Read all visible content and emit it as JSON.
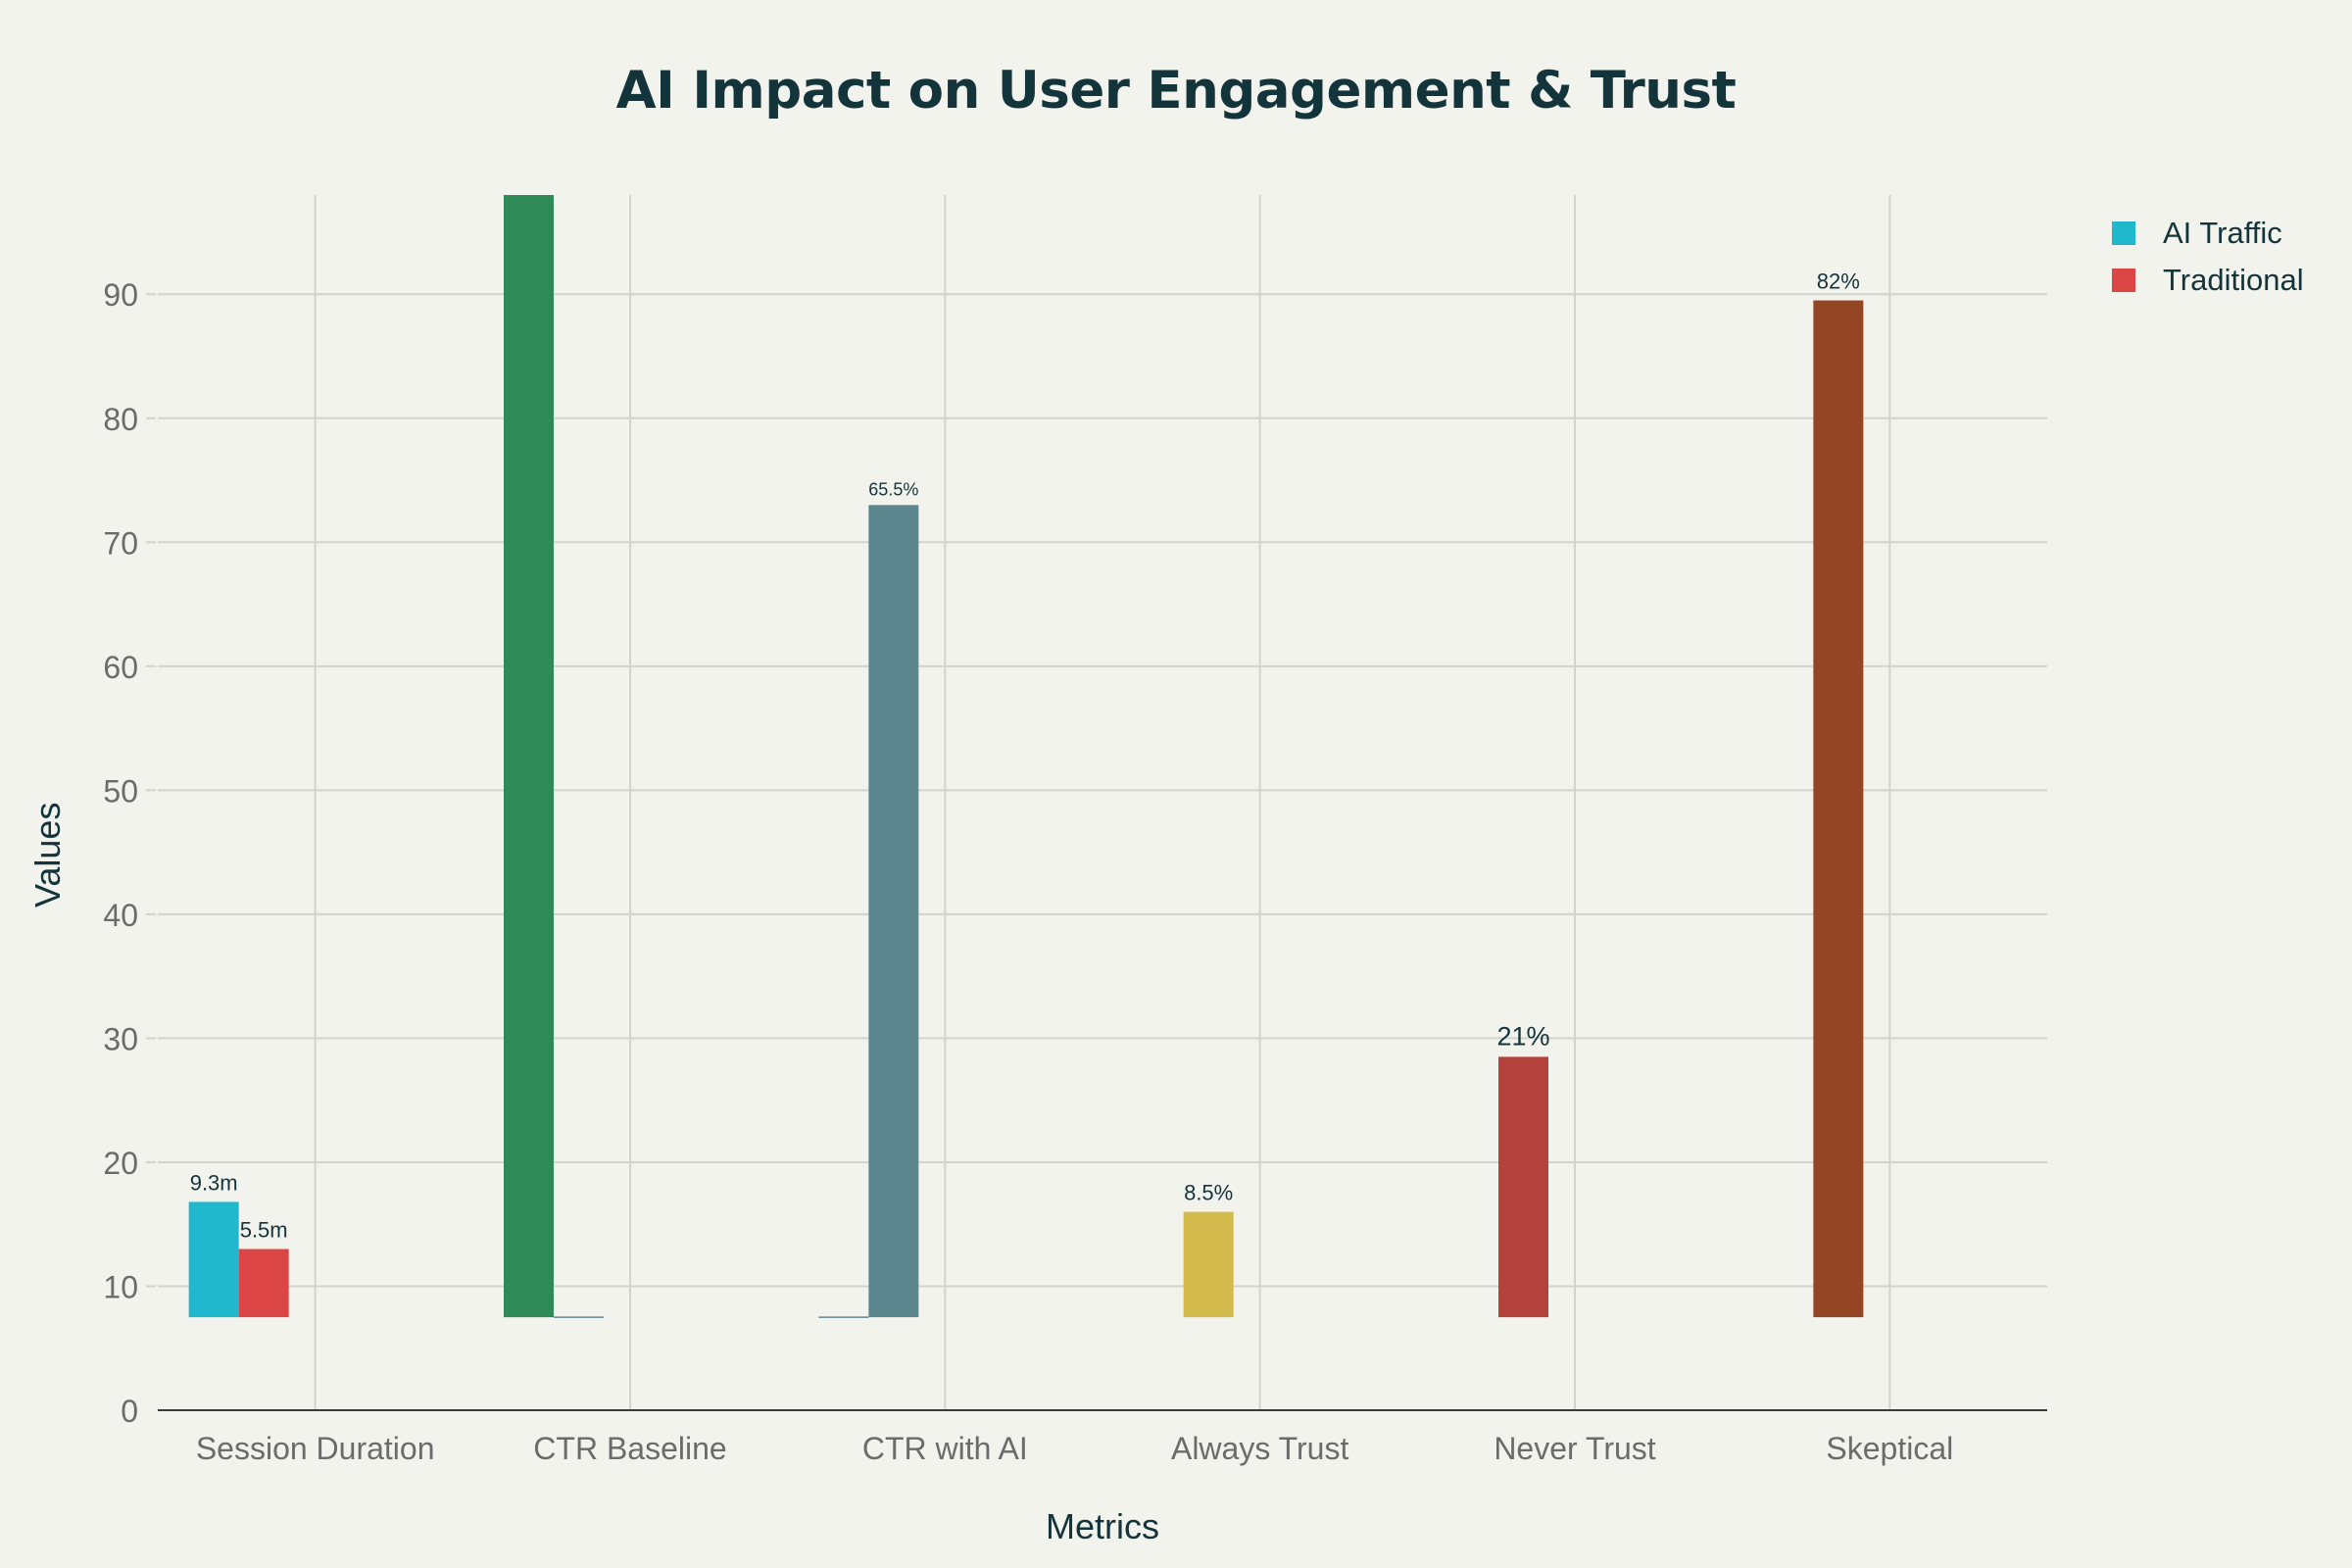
{
  "chart_data": {
    "type": "bar",
    "title": "AI Impact on User Engagement & Trust",
    "xlabel": "Metrics",
    "ylabel": "Values",
    "ylim": [
      0,
      98
    ],
    "yticks": [
      0,
      10,
      20,
      30,
      40,
      50,
      60,
      70,
      80,
      90
    ],
    "grid": true,
    "legend_position": "top-right",
    "categories": [
      "Session Duration",
      "CTR Baseline",
      "CTR with AI",
      "Always Trust",
      "Never Trust",
      "Skeptical"
    ],
    "series": [
      {
        "name": "AI Traffic",
        "color": "#1fb8cd"
      },
      {
        "name": "Traditional",
        "color": "#db4545"
      }
    ],
    "bars": [
      {
        "category": "Session Duration",
        "base": 7.5,
        "value": 16.8,
        "slot": 0,
        "color": "#1fb8cd",
        "label": "9.3m"
      },
      {
        "category": "Session Duration",
        "base": 7.5,
        "value": 13.0,
        "slot": 1,
        "color": "#db4545",
        "label": "5.5m"
      },
      {
        "category": "CTR Baseline",
        "base": 7.5,
        "value": 98,
        "slot": 0,
        "color": "#2e8b57",
        "label": ""
      },
      {
        "category": "CTR Baseline",
        "base": 7.5,
        "value": 7.5,
        "slot": 1,
        "color": "#5d878f",
        "label": ""
      },
      {
        "category": "CTR with AI",
        "base": 7.5,
        "value": 7.5,
        "slot": 0,
        "color": "#5d878f",
        "label": ""
      },
      {
        "category": "CTR with AI",
        "base": 7.5,
        "value": 73,
        "slot": 1,
        "color": "#5d878f",
        "label": "65.5%"
      },
      {
        "category": "Always Trust",
        "base": 7.5,
        "value": 16,
        "slot": 1,
        "color": "#d2ba4c",
        "label": "8.5%"
      },
      {
        "category": "Never Trust",
        "base": 7.5,
        "value": 28.5,
        "slot": 1,
        "color": "#b4413c",
        "label": "21%"
      },
      {
        "category": "Skeptical",
        "base": 7.5,
        "value": 89.5,
        "slot": 1,
        "color": "#944524",
        "label": "82%"
      }
    ]
  }
}
